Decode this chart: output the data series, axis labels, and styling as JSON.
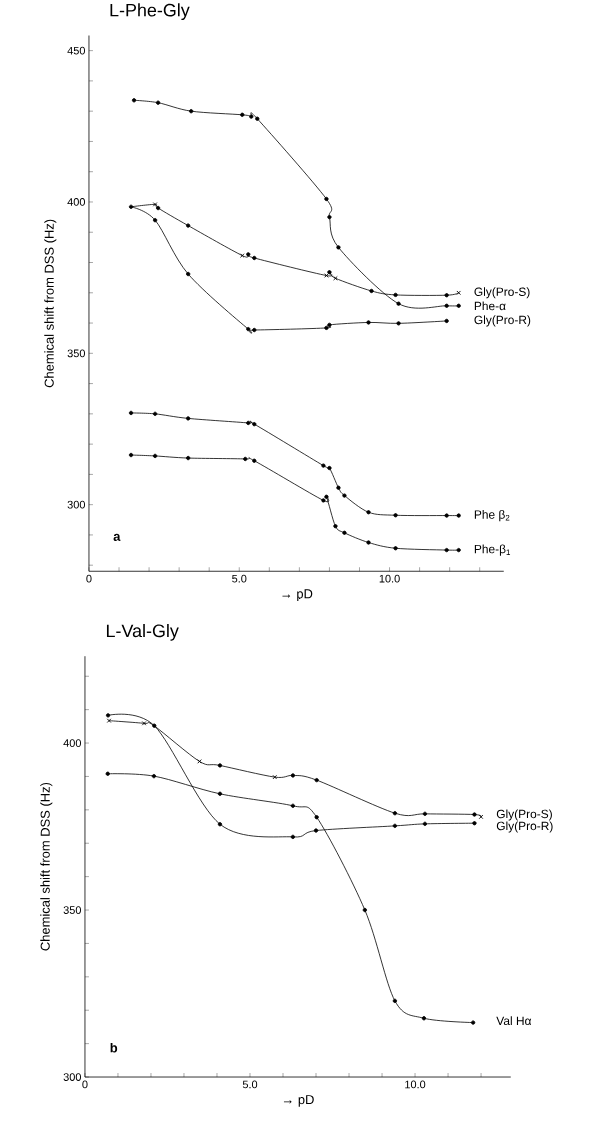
{
  "chart_data": [
    {
      "type": "line",
      "title": "L-Phe-Gly",
      "xlabel": "→ pD",
      "ylabel": "Chemical shift from DSS (Hz)",
      "annotations": [
        "a"
      ],
      "xlim": [
        0,
        13.8
      ],
      "ylim": [
        278,
        455
      ],
      "xticks": [
        {
          "value": 0,
          "label": "0"
        },
        {
          "value": 1,
          "label": null
        },
        {
          "value": 2,
          "label": null
        },
        {
          "value": 3,
          "label": null
        },
        {
          "value": 4,
          "label": null
        },
        {
          "value": 5,
          "label": "5.0"
        },
        {
          "value": 6,
          "label": null
        },
        {
          "value": 7,
          "label": null
        },
        {
          "value": 8,
          "label": null
        },
        {
          "value": 9,
          "label": null
        },
        {
          "value": 10,
          "label": "10.0"
        },
        {
          "value": 11,
          "label": null
        },
        {
          "value": 12,
          "label": null
        },
        {
          "value": 13,
          "label": null
        }
      ],
      "yticks": [
        {
          "value": 280,
          "label": null
        },
        {
          "value": 290,
          "label": null
        },
        300,
        {
          "value": 310,
          "label": null
        },
        {
          "value": 320,
          "label": null
        },
        {
          "value": 330,
          "label": null
        },
        {
          "value": 340,
          "label": null
        },
        350,
        {
          "value": 360,
          "label": null
        },
        {
          "value": 370,
          "label": null
        },
        {
          "value": 380,
          "label": null
        },
        {
          "value": 390,
          "label": null
        },
        400,
        {
          "value": 410,
          "label": null
        },
        {
          "value": 420,
          "label": null
        },
        {
          "value": 430,
          "label": null
        },
        {
          "value": 440,
          "label": null
        },
        450
      ],
      "marker": "circle",
      "line_style": "solid",
      "series": [
        {
          "name": "Gly(Pro-S)",
          "color": "#000000",
          "marker": "none",
          "x": [
            1.4,
            2.2,
            2.3,
            3.3,
            5.1,
            5.3,
            5.5,
            7.9,
            8.0,
            8.2,
            9.4,
            10.2,
            11.9,
            12.3
          ],
          "values": [
            398.4,
            399.2,
            398,
            392.2,
            382.3,
            382.7,
            381.5,
            375.7,
            376.8,
            374.8,
            370.6,
            369.3,
            369.2,
            370
          ]
        },
        {
          "type": "scatter",
          "color": "#000000",
          "x": [
            2.3,
            3.3,
            5.3,
            5.5,
            8.0,
            9.4,
            10.2,
            11.9
          ],
          "values": [
            398,
            392.2,
            382.7,
            381.5,
            376.8,
            370.6,
            369.3,
            369.2
          ]
        },
        {
          "type": "scatter",
          "color": "#000000",
          "marker": "cross",
          "x": [
            2.2,
            5.1,
            7.9,
            8.2,
            12.3
          ],
          "values": [
            399.2,
            382.3,
            375.7,
            374.8,
            370
          ]
        },
        {
          "name": "Phe-α",
          "color": "#000000",
          "x": [
            1.5,
            2.3,
            3.4,
            5.1,
            5.4,
            5.6,
            7.9,
            8.0,
            8.3,
            10.3,
            11.9,
            12.3
          ],
          "values": [
            433.6,
            432.8,
            430,
            428.8,
            428.2,
            427.5,
            401,
            395,
            385,
            366.4,
            365.7,
            365.7
          ]
        },
        {
          "name": "Gly(Pro-R)",
          "color": "#000000",
          "x": [
            1.4,
            2.2,
            3.3,
            5.3,
            5.5,
            7.9,
            8.0,
            9.3,
            10.3,
            11.9
          ],
          "values": [
            398.4,
            394,
            376.2,
            358,
            357.7,
            358.4,
            359.4,
            360.2,
            359.9,
            360.7
          ]
        },
        {
          "name": "Phe β$_{2}$",
          "color": "#000000",
          "x": [
            1.4,
            2.2,
            3.3,
            5.3,
            5.5,
            7.8,
            8.0,
            8.3,
            8.5,
            9.3,
            10.2,
            11.9,
            12.3
          ],
          "values": [
            330.3,
            330,
            328.5,
            327,
            326.6,
            312.9,
            312.1,
            305.6,
            303,
            297.5,
            296.5,
            296.4,
            296.4
          ]
        },
        {
          "name": "Phe-β$_{1}$",
          "color": "#000000",
          "x": [
            1.4,
            2.2,
            3.3,
            5.2,
            5.5,
            7.8,
            7.9,
            8.2,
            8.5,
            9.3,
            10.2,
            11.9,
            12.3
          ],
          "values": [
            316.4,
            316.1,
            315.4,
            315.1,
            314.5,
            301.4,
            302.6,
            292.9,
            290.7,
            287.5,
            285.6,
            285,
            285
          ]
        }
      ]
    },
    {
      "type": "line",
      "title": "L-Val-Gly",
      "xlabel": "→ pD",
      "ylabel": "Chemical shift from DSS (Hz)",
      "annotations": [
        "b"
      ],
      "xlim": [
        0,
        12.9
      ],
      "ylim": [
        300,
        426
      ],
      "xticks": [
        {
          "value": 0,
          "label": "0"
        },
        {
          "value": 1,
          "label": null
        },
        {
          "value": 2,
          "label": null
        },
        {
          "value": 3,
          "label": null
        },
        {
          "value": 4,
          "label": null
        },
        {
          "value": 5,
          "label": "5.0"
        },
        {
          "value": 6,
          "label": null
        },
        {
          "value": 7,
          "label": null
        },
        {
          "value": 8,
          "label": null
        },
        {
          "value": 9,
          "label": null
        },
        {
          "value": 10,
          "label": "10.0"
        },
        {
          "value": 11,
          "label": null
        },
        {
          "value": 12,
          "label": null
        }
      ],
      "yticks": [
        300,
        {
          "value": 310,
          "label": null
        },
        {
          "value": 320,
          "label": null
        },
        {
          "value": 330,
          "label": null
        },
        {
          "value": 340,
          "label": null
        },
        350,
        {
          "value": 360,
          "label": null
        },
        {
          "value": 370,
          "label": null
        },
        {
          "value": 380,
          "label": null
        },
        {
          "value": 390,
          "label": null
        },
        400,
        {
          "value": 410,
          "label": null
        },
        {
          "value": 420,
          "label": null
        }
      ],
      "marker": "circle",
      "line_style": "solid",
      "series": [
        {
          "name": "Gly(Pro-S)",
          "color": "#000000",
          "marker": "none",
          "x": [
            0.73,
            1.79,
            2.09,
            3.47,
            4.09,
            5.75,
            6.3,
            7.02,
            9.39,
            10.3,
            11.8,
            12.0
          ],
          "values": [
            406.7,
            405.9,
            405.2,
            394.5,
            393.3,
            389.8,
            390.3,
            388.9,
            379,
            378.8,
            378.6,
            377.9
          ]
        },
        {
          "type": "scatter",
          "color": "#000000",
          "x": [
            4.09,
            6.3,
            7.02,
            9.39,
            10.3,
            11.8
          ],
          "values": [
            393.3,
            390.3,
            388.9,
            379,
            378.8,
            378.6
          ]
        },
        {
          "type": "scatter",
          "color": "#000000",
          "marker": "cross",
          "x": [
            0.73,
            1.79,
            3.47,
            5.75,
            12.0
          ],
          "values": [
            406.7,
            405.9,
            394.5,
            389.8,
            377.9
          ]
        },
        {
          "name": "Gly(Pro-R)",
          "color": "#000000",
          "x": [
            0.7,
            2.1,
            4.09,
            6.3,
            7.0,
            9.39,
            10.3,
            11.8
          ],
          "values": [
            408.3,
            405.2,
            375.7,
            371.9,
            373.8,
            375.2,
            375.8,
            376.0
          ]
        },
        {
          "name": "Val Hα",
          "color": "#000000",
          "x": [
            0.69,
            2.09,
            4.09,
            6.3,
            7.02,
            8.48,
            9.39,
            10.27,
            11.76
          ],
          "values": [
            390.8,
            390.1,
            384.8,
            381.2,
            377.8,
            350,
            322.8,
            317.6,
            316.3
          ]
        }
      ]
    }
  ]
}
